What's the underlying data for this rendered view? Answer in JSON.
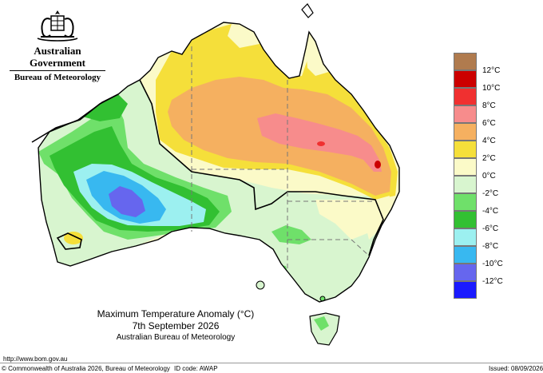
{
  "header": {
    "government": "Australian Government",
    "bureau": "Bureau of Meteorology"
  },
  "titles": {
    "line1": "Maximum Temperature Anomaly (°C)",
    "line2": "7th September 2026",
    "line3": "Australian Bureau of Meteorology"
  },
  "footer": {
    "url": "http://www.bom.gov.au",
    "copyright": "© Commonwealth of Australia 2026, Bureau of Meteorology",
    "id_code": "ID code: AWAP",
    "issued": "Issued: 08/09/2026"
  },
  "legend": {
    "bands": [
      {
        "label": "",
        "color": "#b07b4e"
      },
      {
        "label": "12°C",
        "color": "#cc0000"
      },
      {
        "label": "10°C",
        "color": "#f03030"
      },
      {
        "label": "8°C",
        "color": "#f78c8c"
      },
      {
        "label": "6°C",
        "color": "#f5b060"
      },
      {
        "label": "4°C",
        "color": "#f5df3a"
      },
      {
        "label": "2°C",
        "color": "#fbfac8"
      },
      {
        "label": "0°C",
        "color": "#d8f5cf"
      },
      {
        "label": "-2°C",
        "color": "#6fe06a"
      },
      {
        "label": "-4°C",
        "color": "#32c032"
      },
      {
        "label": "-6°C",
        "color": "#9cf0f0"
      },
      {
        "label": "-8°C",
        "color": "#38b8f0"
      },
      {
        "label": "-10°C",
        "color": "#6666ee"
      },
      {
        "label": "-12°C",
        "color": "#1a1aff"
      }
    ]
  },
  "colors": {
    "land_base": "#fbfac8",
    "coastline": "#000000",
    "borders": "#777777"
  }
}
